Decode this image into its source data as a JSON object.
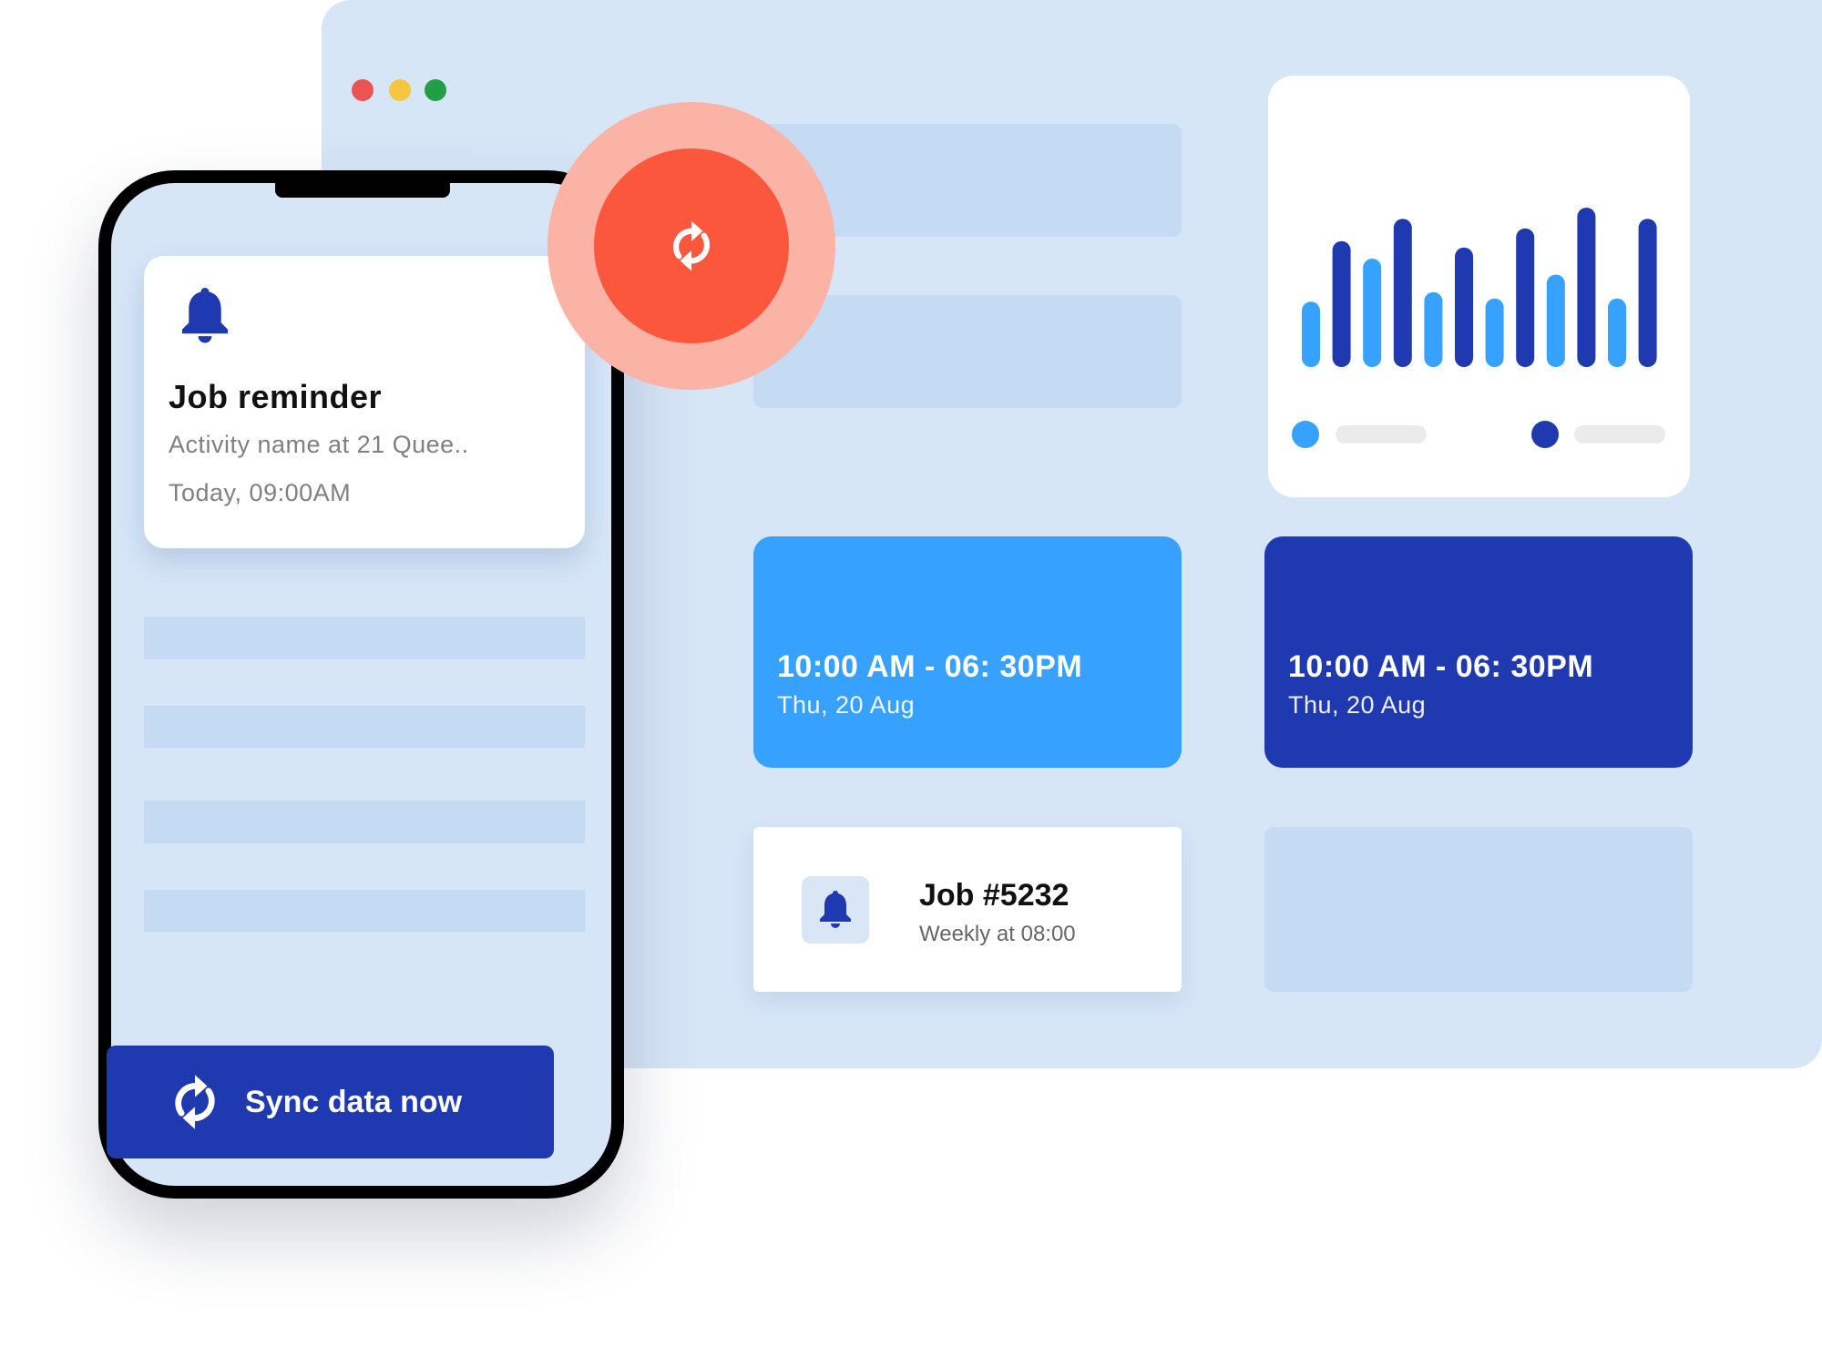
{
  "window": {
    "controls": [
      {
        "name": "close",
        "color": "#ec5353"
      },
      {
        "name": "minimize",
        "color": "#f6c641"
      },
      {
        "name": "maximize",
        "color": "#1fa047"
      }
    ]
  },
  "chart_widget": {
    "type": "bar",
    "relative_heights": [
      0.41,
      0.79,
      0.68,
      0.93,
      0.47,
      0.75,
      0.43,
      0.87,
      0.58,
      1.0,
      0.43,
      0.93
    ],
    "bar_series": [
      "light",
      "dark",
      "light",
      "dark",
      "light",
      "dark",
      "light",
      "dark",
      "light",
      "dark",
      "light",
      "dark"
    ],
    "colors": {
      "light": "#36a1fe",
      "dark": "#1f3ab0"
    }
  },
  "schedule_cards": [
    {
      "time": "10:00 AM - 06: 30PM",
      "date": "Thu, 20 Aug",
      "color": "#36a1fe"
    },
    {
      "time": "10:00 AM - 06: 30PM",
      "date": "Thu, 20 Aug",
      "color": "#1f3ab0"
    }
  ],
  "job_card": {
    "title": "Job #5232",
    "subtitle": "Weekly at 08:00",
    "icon": "bell-icon"
  },
  "phone": {
    "notification": {
      "icon": "bell-icon",
      "title": "Job reminder",
      "description": "Activity name at 21 Quee..",
      "time": "Today, 09:00AM"
    },
    "sync_button": {
      "label": "Sync data now",
      "icon": "sync-icon"
    }
  },
  "sync_badge": {
    "icon": "sync-icon",
    "color": "#fb573d"
  }
}
